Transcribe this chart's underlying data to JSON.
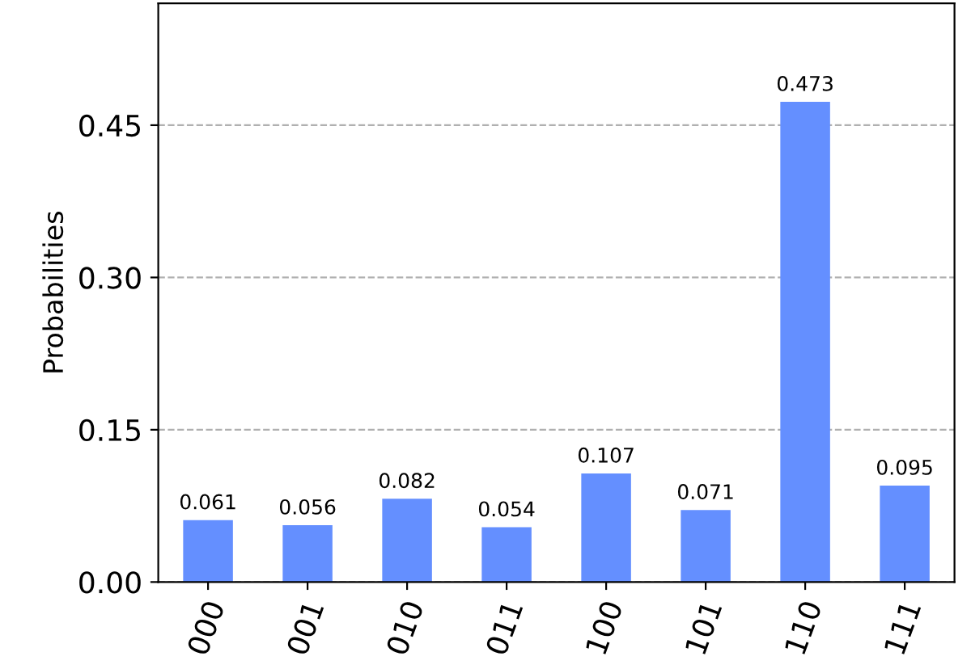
{
  "chart_data": {
    "type": "bar",
    "ylabel": "Probabilities",
    "categories": [
      "000",
      "001",
      "010",
      "011",
      "100",
      "101",
      "110",
      "111"
    ],
    "values": [
      0.061,
      0.056,
      0.082,
      0.054,
      0.107,
      0.071,
      0.473,
      0.095
    ],
    "color": "#648fff",
    "data_labels": true,
    "ylim": [
      0,
      0.57
    ],
    "yticks": [
      {
        "value": 0,
        "label": "0.00"
      },
      {
        "value": 0.15,
        "label": "0.15"
      },
      {
        "value": 0.3,
        "label": "0.30"
      },
      {
        "value": 0.45,
        "label": "0.45"
      }
    ],
    "grid": "y",
    "line_style": "dashed"
  }
}
